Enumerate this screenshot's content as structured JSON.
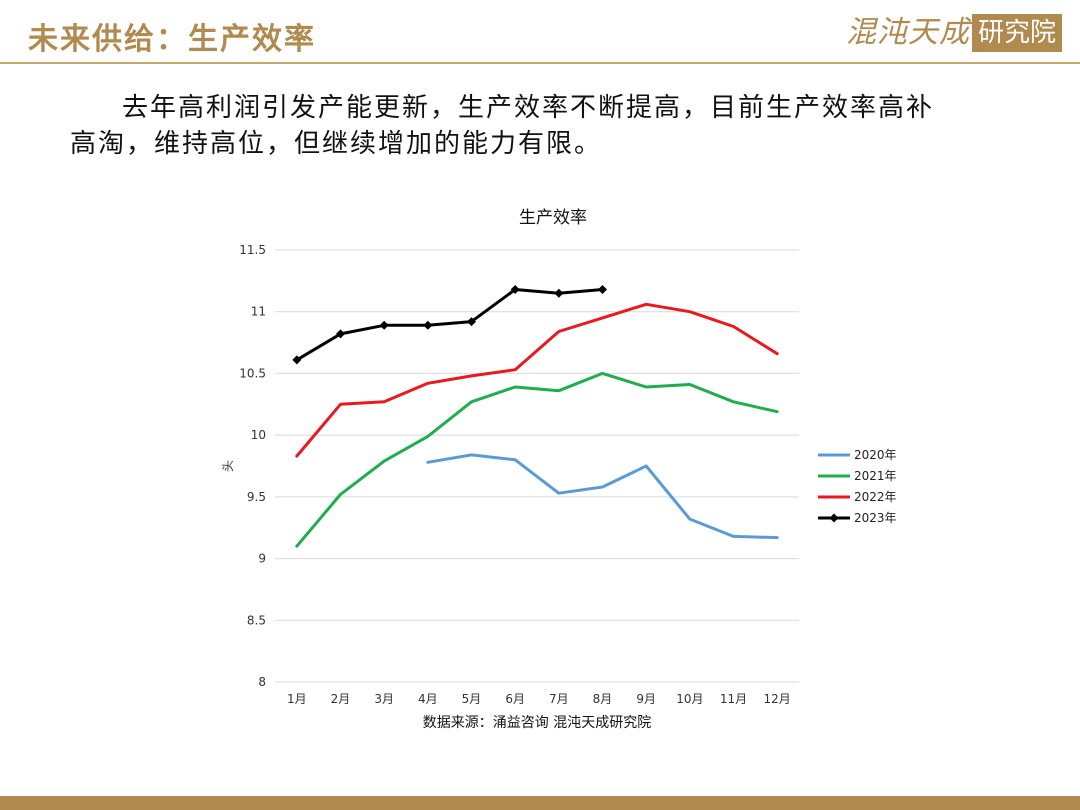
{
  "slide": {
    "title": "未来供给：生产效率",
    "logo_script": "混沌天成",
    "logo_box": "研究院",
    "intro": "去年高利润引发产能更新，生产效率不断提高，目前生产效率高补高淘，维持高位，但继续增加的能力有限。"
  },
  "chart_data": {
    "type": "line",
    "title": "生产效率",
    "xlabel": "",
    "ylabel": "头",
    "source": "数据来源：涌益咨询 混沌天成研究院",
    "categories": [
      "1月",
      "2月",
      "3月",
      "4月",
      "5月",
      "6月",
      "7月",
      "8月",
      "9月",
      "10月",
      "11月",
      "12月"
    ],
    "ylim": [
      8,
      11.5
    ],
    "yticks": [
      8,
      8.5,
      9,
      9.5,
      10,
      10.5,
      11,
      11.5
    ],
    "ytick_labels": [
      "8",
      "8.5",
      "9",
      "9.5",
      "10",
      "10.5",
      "11",
      "11.5"
    ],
    "grid": true,
    "legend_position": "right",
    "series": [
      {
        "name": "2020年",
        "color": "#5b9bd5",
        "marker": false,
        "values": [
          null,
          null,
          null,
          9.78,
          9.84,
          9.8,
          9.53,
          9.58,
          9.75,
          9.32,
          9.18,
          9.17
        ]
      },
      {
        "name": "2021年",
        "color": "#1fad4d",
        "marker": false,
        "values": [
          9.1,
          9.52,
          9.79,
          9.99,
          10.27,
          10.39,
          10.36,
          10.5,
          10.39,
          10.41,
          10.27,
          10.19
        ]
      },
      {
        "name": "2022年",
        "color": "#e8191f",
        "marker": false,
        "values": [
          9.83,
          10.25,
          10.27,
          10.42,
          10.48,
          10.53,
          10.84,
          10.95,
          11.06,
          11.0,
          10.88,
          10.66
        ]
      },
      {
        "name": "2023年",
        "color": "#000000",
        "marker": true,
        "values": [
          10.61,
          10.82,
          10.89,
          10.89,
          10.92,
          11.18,
          11.15,
          11.18,
          null,
          null,
          null,
          null
        ]
      }
    ]
  }
}
